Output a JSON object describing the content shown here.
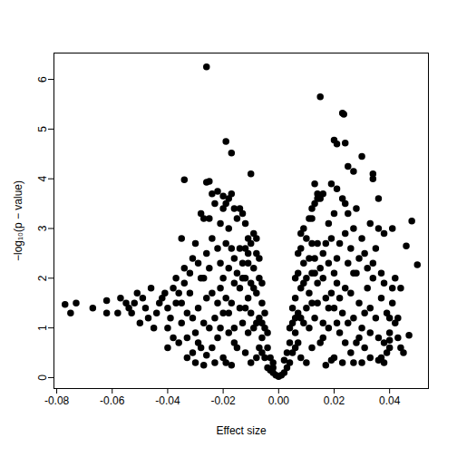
{
  "chart_data": {
    "type": "scatter",
    "x_label": "Effect size",
    "y_label": "−log₁₀(p − value)",
    "color": "#000000",
    "marker": "circle",
    "xlim": [
      -0.081,
      0.054
    ],
    "ylim": [
      -0.22,
      6.53
    ],
    "xticks": [
      -0.08,
      -0.06,
      -0.04,
      -0.02,
      {
        "value": 0,
        "label": "0.00"
      },
      0.02,
      0.04
    ],
    "yticks": [
      0,
      1,
      2,
      3,
      4,
      5,
      6
    ],
    "grid": false,
    "x": [
      -0.026,
      0.015,
      0.023,
      0.0235,
      -0.019,
      -0.017,
      0.02,
      0.021,
      0.024,
      0.03,
      -0.034,
      -0.026,
      -0.025,
      -0.01,
      0.025,
      0.027,
      0.034,
      0.034,
      -0.022,
      -0.02,
      -0.035,
      0.048,
      0.046,
      0.05,
      0.041,
      -0.077,
      -0.075,
      -0.073,
      -0.067,
      -0.062,
      -0.062,
      -0.057,
      -0.054,
      -0.052,
      -0.053,
      -0.048,
      -0.043,
      -0.041,
      -0.04,
      -0.04,
      0.047,
      0.045,
      0.044,
      0.043,
      0.041,
      0.04,
      0.038,
      0.037,
      0.036,
      0.042,
      -0.001,
      -0.002,
      -0.003,
      -0.002,
      -0.004,
      -0.005,
      -0.004,
      -0.006,
      -0.005,
      -0.007,
      -0.006,
      -0.008,
      -0.007,
      -0.009,
      -0.008,
      -0.01,
      -0.009,
      -0.011,
      -0.012,
      -0.013,
      -0.014,
      -0.015,
      -0.01,
      -0.012,
      -0.011,
      -0.013,
      -0.012,
      -0.014,
      -0.015,
      -0.016,
      -0.017,
      -0.018,
      -0.016,
      -0.018,
      -0.019,
      -0.02,
      -0.021,
      -0.02,
      -0.022,
      -0.023,
      -0.024,
      -0.025,
      -0.026,
      -0.027,
      -0.028,
      -0.029,
      -0.03,
      -0.031,
      -0.032,
      -0.033,
      -0.034,
      -0.035,
      -0.036,
      -0.037,
      -0.038,
      -0.039,
      -0.036,
      -0.017,
      -0.019,
      -0.023,
      -0.026,
      -0.028,
      -0.008,
      -0.007,
      -0.009,
      -0.01,
      -0.011,
      -0.012,
      -0.013,
      -0.014,
      -0.015,
      -0.016,
      -0.017,
      -0.018,
      -0.019,
      -0.021,
      -0.022,
      -0.024,
      -0.025,
      -0.027,
      -0.029,
      -0.031,
      -0.033,
      -0.02,
      -0.024,
      -0.023,
      -0.03,
      -0.028,
      -0.031,
      -0.022,
      -0.003,
      -0.004,
      -0.005,
      -0.006,
      -0.007,
      -0.008,
      -0.002,
      -0.006,
      -0.009,
      -0.011,
      -0.013,
      -0.006,
      -0.008,
      -0.01,
      -0.012,
      -0.014,
      -0.016,
      -0.018,
      -0.02,
      -0.021,
      -0.026,
      -0.027,
      -0.029,
      -0.032,
      -0.034,
      -0.037,
      -0.035,
      -0.038,
      -0.04,
      -0.042,
      -0.044,
      -0.045,
      -0.046,
      -0.047,
      -0.049,
      -0.05,
      -0.051,
      -0.055,
      -0.058,
      -0.03,
      -0.033,
      -0.027,
      -0.024,
      -0.019,
      -0.018,
      -0.017,
      -0.016,
      -0.021,
      -0.025,
      -0.011,
      0.001,
      0.002,
      0.003,
      0.002,
      0.004,
      0.005,
      0.004,
      0.006,
      0.005,
      0.007,
      0.006,
      0.008,
      0.007,
      0.009,
      0.008,
      0.01,
      0.009,
      0.011,
      0.012,
      0.013,
      0.014,
      0.015,
      0.016,
      0.01,
      0.012,
      0.011,
      0.013,
      0.012,
      0.014,
      0.015,
      0.016,
      0.017,
      0.018,
      0.016,
      0.018,
      0.019,
      0.02,
      0.021,
      0.02,
      0.022,
      0.023,
      0.024,
      0.025,
      0.026,
      0.027,
      0.028,
      0.029,
      0.03,
      0.031,
      0.032,
      0.033,
      0.034,
      0.035,
      0.036,
      0.037,
      0.038,
      0.039,
      0.04,
      0.041,
      0.042,
      0.043,
      0.017,
      0.019,
      0.023,
      0.026,
      0.028,
      0.008,
      0.007,
      0.009,
      0.01,
      0.011,
      0.012,
      0.013,
      0.014,
      0.015,
      0.016,
      0.017,
      0.018,
      0.019,
      0.021,
      0.022,
      0.024,
      0.025,
      0.027,
      0.029,
      0.031,
      0.033,
      0.02,
      0.024,
      0.023,
      0.03,
      0.028,
      0.031,
      0.022,
      0.003,
      0.004,
      0.005,
      0.006,
      0.007,
      0.008,
      0.006,
      0.009,
      0.011,
      0.013,
      0.006,
      0.008,
      0.01,
      0.012,
      0.014,
      0.016,
      0.018,
      0.02,
      0.021,
      0.026,
      0.027,
      0.029,
      0.032,
      0.034,
      0.037,
      0.035,
      0.038,
      0.036,
      0.033,
      0.03,
      0.033,
      0.027,
      0.039,
      0.04,
      0.038,
      0.013,
      0.014,
      0.012,
      0.021,
      0.024,
      0.019,
      0.025,
      0.036,
      0.044,
      0.04,
      0.0
    ],
    "values": [
      6.25,
      5.65,
      5.32,
      5.3,
      4.75,
      4.52,
      4.78,
      4.7,
      4.72,
      4.45,
      3.98,
      3.93,
      3.95,
      4.1,
      4.25,
      4.15,
      4.1,
      4.0,
      3.75,
      3.65,
      2.8,
      3.15,
      2.65,
      2.27,
      3.0,
      1.47,
      1.3,
      1.5,
      1.4,
      1.55,
      1.3,
      1.6,
      1.4,
      1.5,
      1.3,
      1.4,
      1.5,
      1.7,
      1.0,
      0.6,
      0.85,
      0.5,
      0.6,
      1.2,
      1.8,
      0.75,
      0.7,
      0.4,
      0.35,
      2.0,
      0.05,
      0.1,
      0.15,
      0.3,
      0.2,
      0.4,
      0.6,
      0.8,
      1.0,
      1.2,
      1.5,
      1.7,
      2.0,
      2.2,
      2.5,
      2.7,
      2.9,
      2.8,
      3.1,
      3.3,
      3.4,
      3.2,
      0.3,
      0.5,
      0.9,
      1.1,
      1.4,
      1.8,
      2.1,
      2.4,
      2.6,
      3.0,
      0.7,
      1.3,
      1.6,
      2.0,
      2.3,
      0.4,
      0.8,
      1.2,
      1.7,
      2.2,
      2.5,
      3.2,
      2.0,
      1.4,
      0.9,
      0.5,
      1.7,
      1.3,
      1.9,
      1.1,
      0.7,
      1.5,
      1.8,
      1.2,
      1.7,
      0.25,
      0.3,
      0.3,
      0.45,
      0.6,
      0.4,
      0.6,
      1.0,
      1.3,
      1.6,
      2.0,
      2.3,
      2.6,
      0.6,
      1.0,
      1.5,
      2.2,
      2.7,
      1.0,
      1.5,
      0.6,
      1.0,
      1.1,
      0.7,
      1.2,
      0.8,
      3.4,
      2.8,
      3.5,
      2.7,
      3.3,
      2.4,
      2.6,
      0.4,
      0.9,
      1.3,
      1.9,
      2.4,
      2.8,
      0.2,
      0.5,
      1.8,
      2.3,
      2.0,
      1.1,
      1.1,
      1.9,
      2.6,
      1.4,
      1.9,
      0.9,
      1.3,
      1.8,
      1.6,
      2.0,
      2.3,
      2.1,
      2.2,
      2.0,
      1.5,
      0.8,
      1.4,
      1.6,
      1.3,
      1.0,
      1.8,
      1.2,
      1.6,
      1.1,
      1.7,
      1.5,
      1.3,
      0.3,
      0.4,
      0.25,
      3.7,
      3.5,
      3.6,
      3.7,
      3.4,
      3.1,
      3.2,
      2.5,
      0.05,
      0.1,
      0.2,
      0.35,
      0.3,
      0.5,
      0.7,
      0.9,
      1.1,
      1.3,
      1.6,
      1.8,
      2.1,
      2.3,
      2.6,
      2.8,
      3.0,
      3.2,
      3.4,
      3.5,
      3.7,
      3.6,
      3.7,
      0.3,
      0.6,
      1.0,
      1.2,
      1.5,
      1.9,
      2.2,
      2.5,
      2.7,
      3.1,
      0.8,
      1.4,
      1.7,
      2.1,
      2.4,
      0.4,
      0.9,
      1.3,
      1.8,
      2.3,
      2.6,
      3.0,
      2.1,
      1.5,
      1.0,
      0.6,
      1.8,
      1.4,
      2.0,
      1.2,
      0.8,
      1.6,
      1.9,
      1.3,
      0.9,
      1.5,
      1.1,
      0.8,
      0.25,
      0.35,
      0.3,
      0.5,
      0.7,
      0.4,
      0.7,
      1.1,
      1.4,
      1.7,
      2.1,
      2.4,
      2.7,
      0.7,
      1.1,
      1.6,
      2.3,
      2.8,
      1.1,
      1.6,
      0.7,
      1.1,
      1.2,
      0.8,
      1.3,
      0.9,
      3.3,
      2.9,
      3.6,
      2.8,
      3.4,
      2.5,
      2.7,
      0.5,
      1.0,
      1.4,
      2.0,
      2.5,
      2.9,
      0.6,
      1.9,
      2.4,
      2.1,
      1.2,
      1.2,
      2.0,
      2.7,
      1.5,
      2.0,
      1.0,
      1.4,
      1.9,
      1.7,
      2.1,
      2.4,
      2.2,
      2.3,
      2.1,
      2.6,
      2.9,
      3.0,
      3.1,
      0.3,
      0.4,
      0.3,
      0.5,
      0.6,
      0.3,
      3.9,
      3.6,
      3.2,
      3.8,
      3.5,
      3.9,
      3.3,
      3.6,
      1.8,
      1.2,
      0.02
    ]
  }
}
